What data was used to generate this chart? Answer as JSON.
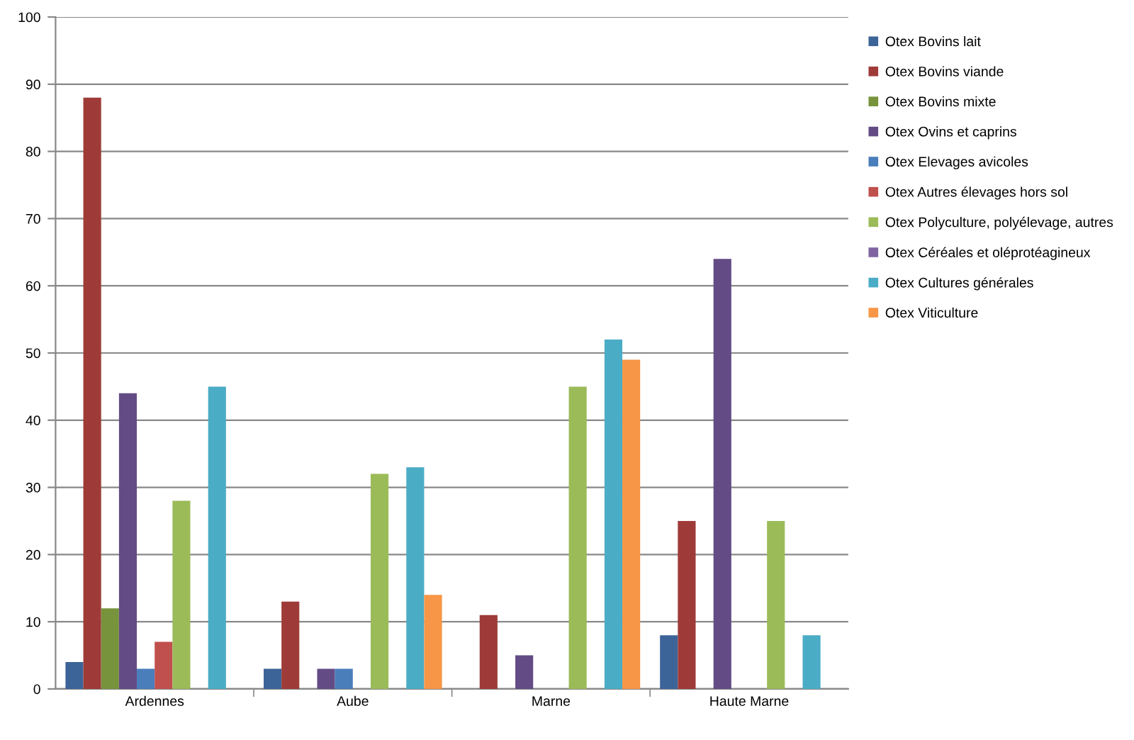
{
  "chart_data": {
    "type": "bar",
    "categories": [
      "Ardennes",
      "Aube",
      "Marne",
      "Haute Marne"
    ],
    "series": [
      {
        "name": "Otex Bovins lait",
        "color": "#3c6499",
        "values": [
          4,
          3,
          0,
          8
        ]
      },
      {
        "name": "Otex Bovins viande",
        "color": "#9e3b38",
        "values": [
          88,
          13,
          11,
          25
        ]
      },
      {
        "name": "Otex Bovins mixte",
        "color": "#77933c",
        "values": [
          12,
          0,
          0,
          0
        ]
      },
      {
        "name": "Otex Ovins et caprins",
        "color": "#634c85",
        "values": [
          44,
          3,
          5,
          64
        ]
      },
      {
        "name": "Otex Elevages avicoles",
        "color": "#4a7ebb",
        "values": [
          3,
          3,
          0,
          0
        ]
      },
      {
        "name": "Otex Autres élevages hors sol",
        "color": "#c0504d",
        "values": [
          7,
          0,
          0,
          0
        ]
      },
      {
        "name": "Otex Polyculture, polyélevage, autres",
        "color": "#9bbb59",
        "values": [
          28,
          32,
          45,
          25
        ]
      },
      {
        "name": "Otex Céréales et oléprotéagineux",
        "color": "#8064a2",
        "values": [
          0,
          0,
          0,
          0
        ]
      },
      {
        "name": "Otex Cultures générales",
        "color": "#4bacc6",
        "values": [
          45,
          33,
          52,
          8
        ]
      },
      {
        "name": "Otex Viticulture",
        "color": "#f79646",
        "values": [
          0,
          14,
          49,
          0
        ]
      }
    ],
    "ylim": [
      0,
      100
    ],
    "yticks": [
      0,
      10,
      20,
      30,
      40,
      50,
      60,
      70,
      80,
      90,
      100
    ],
    "grid": "y",
    "legend": "right"
  }
}
